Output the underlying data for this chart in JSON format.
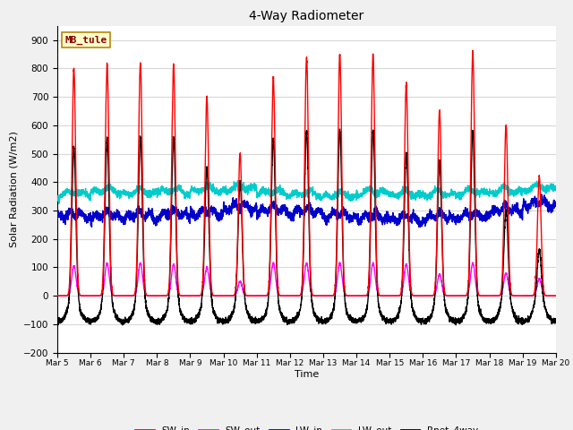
{
  "title": "4-Way Radiometer",
  "xlabel": "Time",
  "ylabel": "Solar Radiation (W/m2)",
  "ylim": [
    -200,
    950
  ],
  "yticks": [
    -200,
    -100,
    0,
    100,
    200,
    300,
    400,
    500,
    600,
    700,
    800,
    900
  ],
  "site_label": "MB_tule",
  "start_day": 5,
  "end_day": 20,
  "num_days": 15,
  "points_per_day": 288,
  "SW_in_color": "#ff0000",
  "SW_out_color": "#ff00ff",
  "LW_in_color": "#0000cc",
  "LW_out_color": "#00cccc",
  "Rnet_color": "#000000",
  "fig_bg_color": "#f0f0f0",
  "plot_bg_color": "#ffffff",
  "grid_color": "#d8d8d8",
  "SW_in_peak": [
    800,
    815,
    820,
    815,
    700,
    500,
    770,
    840,
    850,
    850,
    745,
    650,
    860,
    600,
    420
  ],
  "SW_out_peak": [
    105,
    115,
    115,
    110,
    100,
    50,
    115,
    115,
    115,
    115,
    110,
    75,
    115,
    80,
    60
  ],
  "LW_in_base": [
    270,
    270,
    270,
    275,
    280,
    300,
    290,
    285,
    270,
    265,
    260,
    265,
    270,
    290,
    310
  ],
  "LW_out_base": [
    350,
    360,
    355,
    360,
    365,
    370,
    355,
    350,
    345,
    355,
    350,
    350,
    355,
    360,
    370
  ],
  "Rnet_peak": [
    520,
    550,
    555,
    555,
    450,
    400,
    550,
    580,
    585,
    580,
    500,
    470,
    580,
    300,
    160
  ]
}
